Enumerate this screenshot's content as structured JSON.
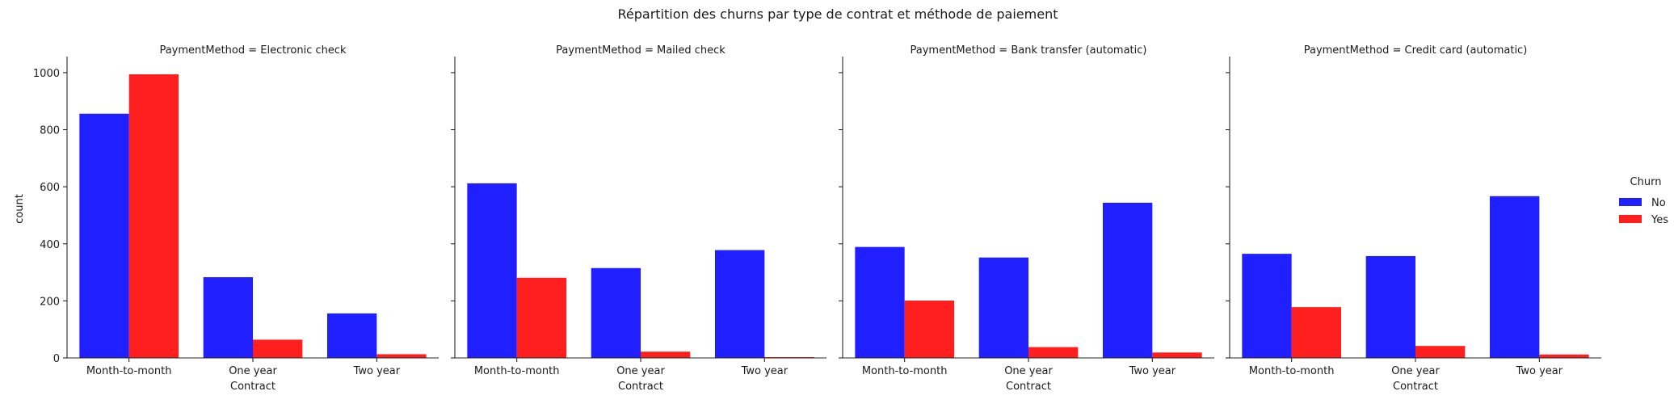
{
  "chart_data": {
    "type": "bar",
    "title": "Répartition des churns par type de contrat et méthode de paiement",
    "xlabel": "Contract",
    "ylabel": "count",
    "categories": [
      "Month-to-month",
      "One year",
      "Two year"
    ],
    "ylim": [
      0,
      1045
    ],
    "yticks": [
      0,
      200,
      400,
      600,
      800,
      1000
    ],
    "grid": false,
    "legend": {
      "title": "Churn",
      "placement": "right",
      "entries": [
        "No",
        "Yes"
      ]
    },
    "colors": {
      "No": "#0000ff",
      "Yes": "#ff0000"
    },
    "panels": [
      {
        "title": "PaymentMethod = Electronic check",
        "series": [
          {
            "name": "No",
            "values": [
              856,
              283,
              156
            ]
          },
          {
            "name": "Yes",
            "values": [
              994,
              64,
              13
            ]
          }
        ]
      },
      {
        "title": "PaymentMethod = Mailed check",
        "series": [
          {
            "name": "No",
            "values": [
              612,
              315,
              378
            ]
          },
          {
            "name": "Yes",
            "values": [
              281,
              22,
              3
            ]
          }
        ]
      },
      {
        "title": "PaymentMethod = Bank transfer (automatic)",
        "series": [
          {
            "name": "No",
            "values": [
              389,
              352,
              544
            ]
          },
          {
            "name": "Yes",
            "values": [
              201,
              38,
              19
            ]
          }
        ]
      },
      {
        "title": "PaymentMethod = Credit card (automatic)",
        "series": [
          {
            "name": "No",
            "values": [
              365,
              357,
              567
            ]
          },
          {
            "name": "Yes",
            "values": [
              178,
              42,
              12
            ]
          }
        ]
      }
    ]
  }
}
